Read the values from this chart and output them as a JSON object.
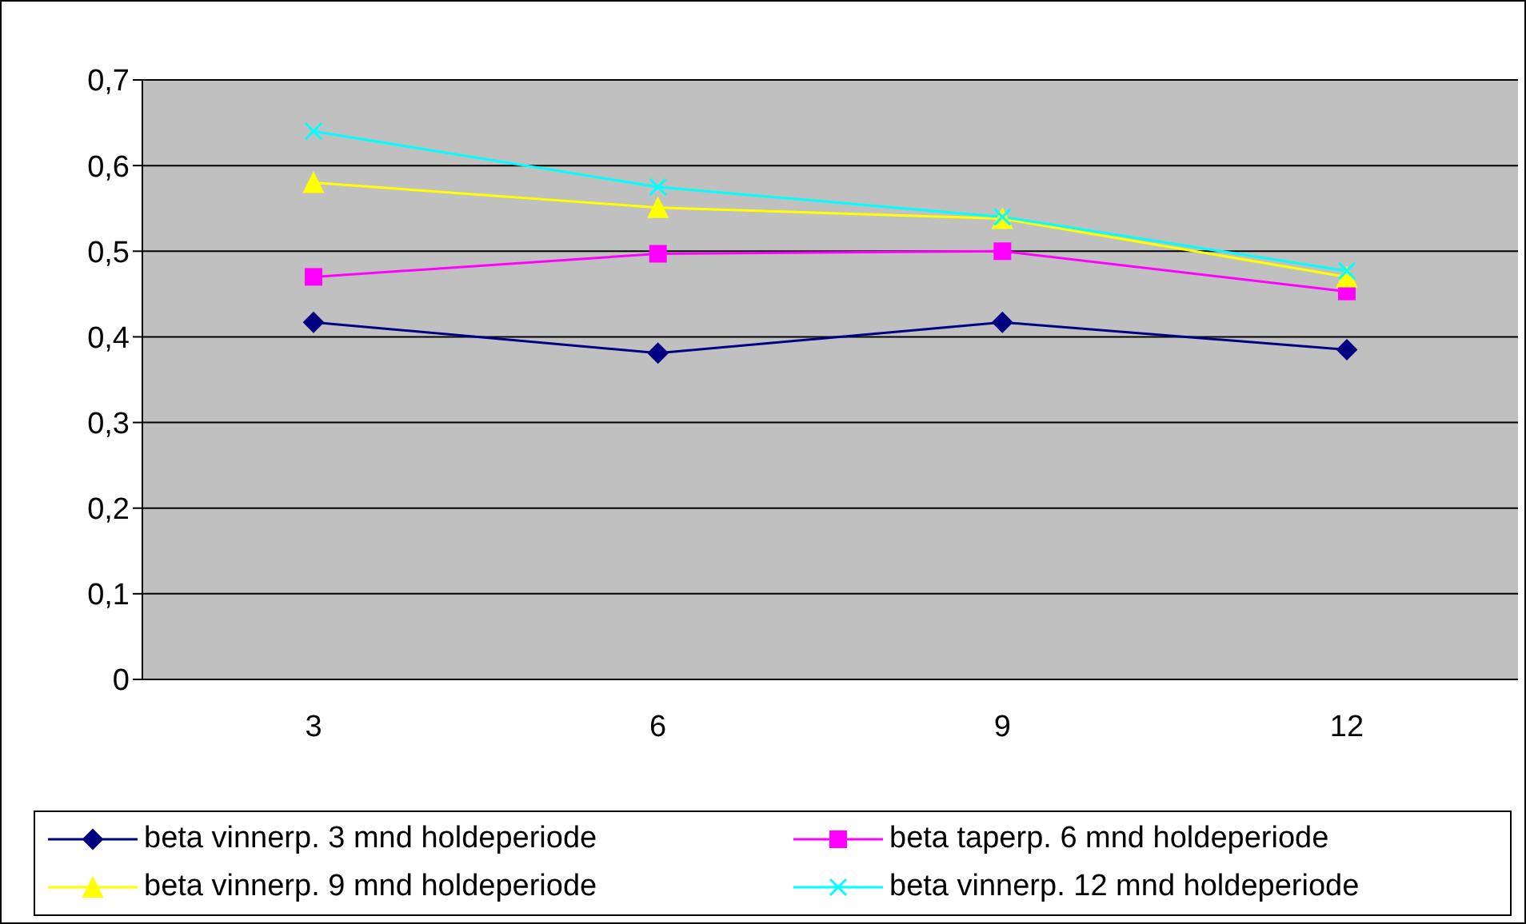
{
  "chart_data": {
    "type": "line",
    "categories": [
      "3",
      "6",
      "9",
      "12"
    ],
    "series": [
      {
        "name": "beta vinnerp. 3 mnd holdeperiode",
        "color": "#000080",
        "marker": "diamond",
        "values": [
          0.417,
          0.381,
          0.417,
          0.385
        ]
      },
      {
        "name": "beta taperp. 6 mnd holdeperiode",
        "color": "#ff00ff",
        "marker": "square",
        "values": [
          0.47,
          0.497,
          0.5,
          0.453
        ]
      },
      {
        "name": "beta vinnerp. 9 mnd holdeperiode",
        "color": "#ffff00",
        "marker": "triangle",
        "values": [
          0.58,
          0.551,
          0.538,
          0.47
        ]
      },
      {
        "name": "beta vinnerp. 12 mnd holdeperiode",
        "color": "#00ffff",
        "marker": "cross",
        "values": [
          0.64,
          0.575,
          0.54,
          0.477
        ]
      }
    ],
    "ylim": [
      0,
      0.7
    ],
    "yticks": [
      {
        "value": 0,
        "label": "0"
      },
      {
        "value": 0.1,
        "label": "0,1"
      },
      {
        "value": 0.2,
        "label": "0,2"
      },
      {
        "value": 0.3,
        "label": "0,3"
      },
      {
        "value": 0.4,
        "label": "0,4"
      },
      {
        "value": 0.5,
        "label": "0,5"
      },
      {
        "value": 0.6,
        "label": "0,6"
      },
      {
        "value": 0.7,
        "label": "0,7"
      }
    ],
    "grid": "y",
    "legend": "bottom"
  }
}
